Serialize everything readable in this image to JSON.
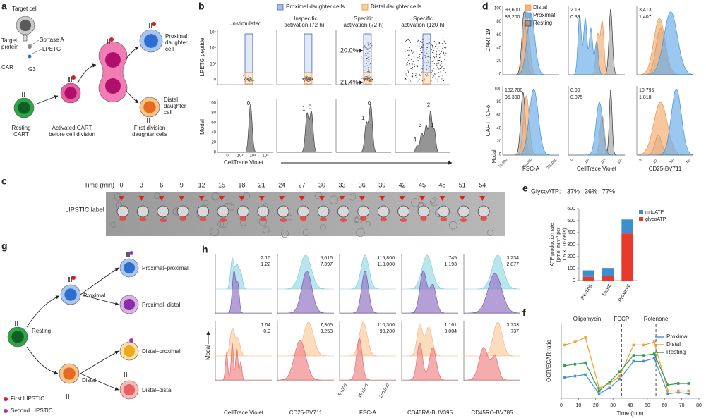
{
  "a": {
    "letter": "a",
    "target_cell": "Target cell",
    "target_protein": [
      "Target",
      "protein"
    ],
    "sortase": "Sortase A",
    "lpetg": "LPETG",
    "car": "CAR",
    "g3": "G3",
    "resting": [
      "Resting",
      "CART"
    ],
    "activated": [
      "Activated CART",
      "before cell division"
    ],
    "proximal": [
      "Proximal",
      "daughter",
      "cell"
    ],
    "distal": [
      "Distal",
      "daughter",
      "cell"
    ],
    "first_division": [
      "First division",
      "daughter cells"
    ]
  },
  "b": {
    "letter": "b",
    "legend": [
      "Proximal daughter cells",
      "Distal daughter cells"
    ],
    "columns": [
      [
        "Unstimulated"
      ],
      [
        "Unspecific",
        "activation (72 h)"
      ],
      [
        "Specific",
        "activation (72 h)"
      ],
      [
        "Specific",
        "activation (120 h)"
      ]
    ],
    "top_ylabel": "LPETG peptide",
    "top_ticks": [
      "10⁵",
      "10⁴",
      "10³",
      "0"
    ],
    "proximal_pct": "20.0%",
    "distal_pct": "21.4%",
    "modal_label": "Modal",
    "modal_ticks": [
      "100",
      "80",
      "60",
      "40",
      "20",
      "0"
    ],
    "x_ticks": [
      "0",
      "10³",
      "10⁴",
      "10⁵"
    ],
    "xlabel": "CellTrace Violet",
    "peaks": [
      [
        "0"
      ],
      [
        "1",
        "0"
      ],
      [
        "1",
        "0"
      ],
      [
        "2",
        "3",
        "1",
        "4"
      ]
    ]
  },
  "c": {
    "letter": "c",
    "time_label": "Time (min)",
    "times": [
      "0",
      "3",
      "6",
      "9",
      "12",
      "15",
      "18",
      "21",
      "24",
      "27",
      "30",
      "33",
      "36",
      "39",
      "42",
      "45",
      "48",
      "51",
      "54"
    ],
    "label": "LIPSTIC label"
  },
  "d": {
    "letter": "d",
    "legend": [
      "Distal",
      "Proximal",
      "Resting"
    ],
    "rows": [
      "CART 19",
      "CART TCRδ"
    ],
    "modal_label": "Modal",
    "modal_ticks": [
      "100",
      "80",
      "60",
      "40",
      "20",
      "0"
    ],
    "values": [
      [
        [
          "93,600",
          "83,200"
        ],
        [
          "2.13",
          "0.39"
        ],
        [
          "3,413",
          "1,407"
        ]
      ],
      [
        [
          "132,700",
          "95,300"
        ],
        [
          "0.99",
          "0.075"
        ],
        [
          "10,796",
          "1,818"
        ]
      ]
    ],
    "columns": [
      {
        "xlabel": "FSC-A",
        "ticks": [
          "50,000",
          "150,000",
          "250,000"
        ]
      },
      {
        "xlabel": "CellTrace Violet",
        "ticks": [
          "0",
          "10³",
          "10⁴",
          "10⁵"
        ]
      },
      {
        "xlabel": "CD25-BV711",
        "ticks": [
          "0",
          "10³",
          "10⁴",
          "10⁵"
        ]
      }
    ]
  },
  "e": {
    "letter": "e",
    "chart": {
      "type": "bar",
      "stacked": true,
      "categories": [
        "Resting",
        "Distal",
        "Proximal"
      ],
      "series": [
        {
          "name": "glycoATP",
          "color": "#e8392b",
          "values": [
            31,
            38,
            393
          ]
        },
        {
          "name": "mitoATP",
          "color": "#3b8fd0",
          "values": [
            54,
            67,
            117
          ]
        }
      ],
      "ylim": [
        0,
        600
      ],
      "yticks": [
        0,
        100,
        200,
        300,
        400,
        500,
        600
      ],
      "ylabel": [
        "ATP production rate",
        "(pmol min⁻¹ per",
        "1.5 × 10⁵ cells)"
      ],
      "annotation_label": "GlycoATP:",
      "annotations": [
        "37%",
        "36%",
        "77%"
      ]
    }
  },
  "f": {
    "letter": "f",
    "chart": {
      "type": "line",
      "x": [
        2,
        8,
        14,
        22,
        28,
        34,
        42,
        48,
        54,
        62,
        68,
        74
      ],
      "series": [
        {
          "name": "Proximal",
          "color": "#4a8fd8",
          "values": [
            1.4,
            1.5,
            1.6,
            0.3,
            0.7,
            1.3,
            2.5,
            2.5,
            2.7,
            0.3,
            0.4,
            0.3
          ]
        },
        {
          "name": "Distal",
          "color": "#f0a030",
          "values": [
            3.6,
            3.8,
            4.1,
            0.7,
            1.0,
            1.5,
            3.6,
            3.6,
            3.8,
            0.5,
            0.5,
            0.5
          ]
        },
        {
          "name": "Resting",
          "color": "#2e9e4a",
          "values": [
            2.2,
            2.3,
            2.4,
            0.5,
            1.1,
            1.8,
            2.9,
            2.9,
            3.0,
            0.9,
            1.0,
            1.0
          ]
        }
      ],
      "xlim": [
        0,
        80
      ],
      "xticks": [
        0,
        10,
        20,
        30,
        40,
        50,
        60,
        70,
        80
      ],
      "ylim": [
        0,
        5
      ],
      "xlabel": "Time (min)",
      "ylabel": "OCR/ECAR ratio",
      "treatments": [
        {
          "x": 15,
          "label": "Oligomycin"
        },
        {
          "x": 35,
          "label": "FCCP"
        },
        {
          "x": 55,
          "label": "Rotenone"
        }
      ]
    }
  },
  "g": {
    "letter": "g",
    "resting": "Resting",
    "proximal": "Proximal",
    "distal": "Distal",
    "proximal_proximal": "Proximal–proximal",
    "proximal_distal": "Proximal–distal",
    "distal_proximal": "Distal–proximal",
    "distal_distal": "Distal–distal",
    "first": "First LIPSTIC",
    "second": "Second LIPSTIC"
  },
  "h": {
    "letter": "h",
    "modal_label": "Modal",
    "fsc_ticks": [
      "50,000",
      "150,000",
      "250,000"
    ],
    "columns": [
      {
        "xlabel": "CellTrace Violet",
        "top": [
          "2.16",
          "1.22"
        ],
        "bottom": [
          "1.64",
          "0.9"
        ]
      },
      {
        "xlabel": "CD25-BV711",
        "top": [
          "5,616",
          "7,397"
        ],
        "bottom": [
          "7,305",
          "3,253"
        ]
      },
      {
        "xlabel": "FSC-A",
        "top": [
          "115,800",
          "113,000"
        ],
        "bottom": [
          "110,300",
          "90,200"
        ]
      },
      {
        "xlabel": "CD45RA-BUV395",
        "top": [
          "745",
          "1,193"
        ],
        "bottom": [
          "1,161",
          "3,004"
        ]
      },
      {
        "xlabel": "CD45RO-BV785",
        "top": [
          "3,234",
          "2,877"
        ],
        "bottom": [
          "3,733",
          "737"
        ]
      }
    ]
  }
}
